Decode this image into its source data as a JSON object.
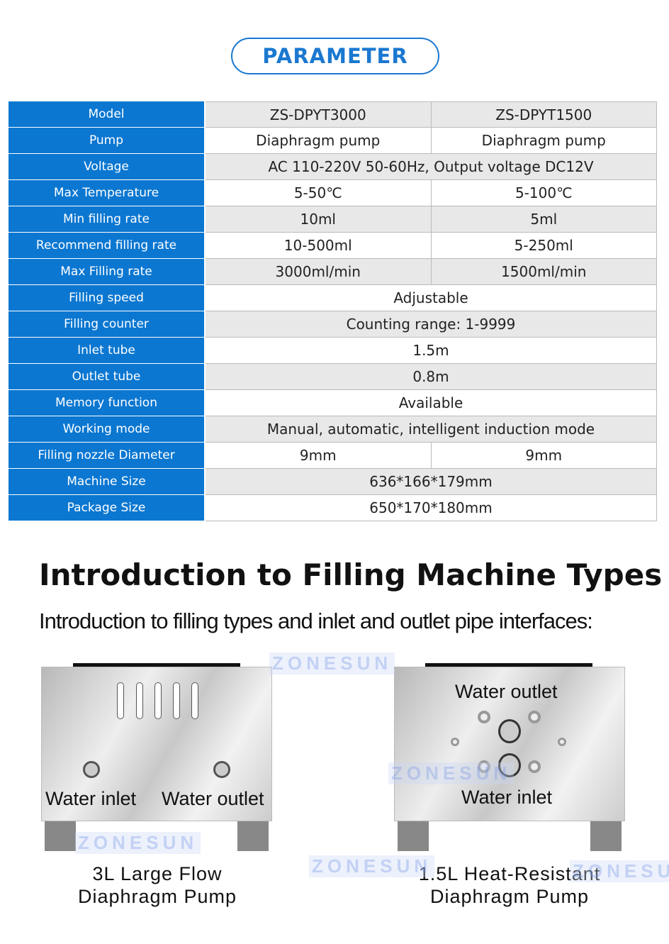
{
  "header": {
    "title": "PARAMETER"
  },
  "table": [
    {
      "label": "Model",
      "values": [
        "ZS-DPYT3000",
        "ZS-DPYT1500"
      ]
    },
    {
      "label": "Pump",
      "values": [
        "Diaphragm pump",
        "Diaphragm pump"
      ]
    },
    {
      "label": "Voltage",
      "values": [
        "AC 110-220V 50-60Hz,   Output voltage DC12V"
      ]
    },
    {
      "label": "Max Temperature",
      "values": [
        "5-50℃",
        "5-100℃"
      ]
    },
    {
      "label": "Min filling rate",
      "values": [
        "10ml",
        "5ml"
      ]
    },
    {
      "label": "Recommend filling rate",
      "values": [
        "10-500ml",
        "5-250ml"
      ]
    },
    {
      "label": "Max Filling rate",
      "values": [
        "3000ml/min",
        "1500ml/min"
      ]
    },
    {
      "label": "Filling speed",
      "values": [
        "Adjustable"
      ]
    },
    {
      "label": "Filling counter",
      "values": [
        "Counting range: 1-9999"
      ]
    },
    {
      "label": "Inlet tube",
      "values": [
        "1.5m"
      ]
    },
    {
      "label": "Outlet tube",
      "values": [
        "0.8m"
      ]
    },
    {
      "label": "Memory function",
      "values": [
        "Available"
      ]
    },
    {
      "label": "Working mode",
      "values": [
        "Manual,  automatic,  intelligent induction mode"
      ]
    },
    {
      "label": "Filling nozzle Diameter",
      "values": [
        "9mm",
        "9mm"
      ]
    },
    {
      "label": "Machine Size",
      "values": [
        "636*166*179mm"
      ]
    },
    {
      "label": "Package Size",
      "values": [
        "650*170*180mm"
      ]
    }
  ],
  "intro": {
    "title": "Introduction to Filling Machine Types",
    "subtitle": "Introduction to filling types and inlet and outlet pipe interfaces:"
  },
  "machines": [
    {
      "labels": [
        "Water inlet",
        "Water outlet"
      ],
      "caption_line1": "3L Large Flow",
      "caption_line2": "Diaphragm Pump"
    },
    {
      "labels": [
        "Water outlet",
        "Water inlet"
      ],
      "caption_line1": "1.5L Heat-Resistant",
      "caption_line2": "Diaphragm Pump"
    }
  ],
  "watermark": "ZONESUN",
  "colors": {
    "accent": "#0b77d1",
    "row_alt": "#e8e8e8"
  }
}
